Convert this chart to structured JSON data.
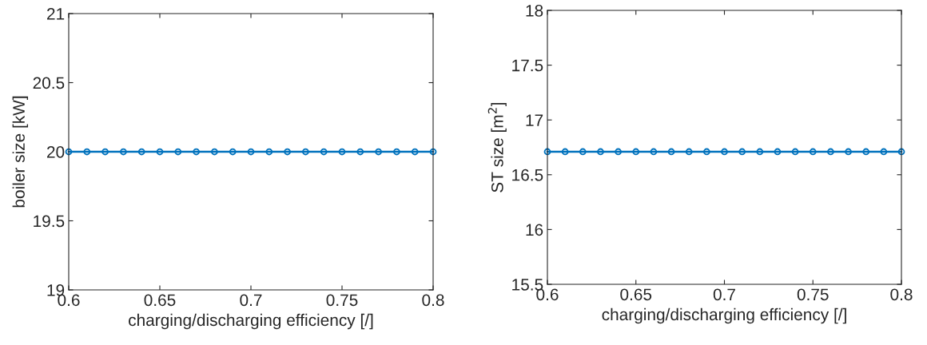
{
  "chart_data": [
    {
      "type": "line",
      "xlabel": "charging/discharging efficiency [/]",
      "ylabel": "boiler size [kW]",
      "x": [
        0.6,
        0.61,
        0.62,
        0.63,
        0.64,
        0.65,
        0.66,
        0.67,
        0.68,
        0.69,
        0.7,
        0.71,
        0.72,
        0.73,
        0.74,
        0.75,
        0.76,
        0.77,
        0.78,
        0.79,
        0.8
      ],
      "series": [
        {
          "color": "#0072bd",
          "values": [
            20,
            20,
            20,
            20,
            20,
            20,
            20,
            20,
            20,
            20,
            20,
            20,
            20,
            20,
            20,
            20,
            20,
            20,
            20,
            20,
            20
          ]
        }
      ],
      "xlim": [
        0.6,
        0.8
      ],
      "xticks": [
        0.6,
        0.65,
        0.7,
        0.75,
        0.8
      ],
      "ylim": [
        19,
        21
      ],
      "yticks": [
        19,
        19.5,
        20,
        20.5,
        21
      ],
      "marker": "circle",
      "line_style": "solid",
      "grid": false,
      "legend": false
    },
    {
      "type": "line",
      "xlabel": "charging/discharging efficiency [/]",
      "ylabel": "ST size [m$^{2}$]",
      "x": [
        0.6,
        0.61,
        0.62,
        0.63,
        0.64,
        0.65,
        0.66,
        0.67,
        0.68,
        0.69,
        0.7,
        0.71,
        0.72,
        0.73,
        0.74,
        0.75,
        0.76,
        0.77,
        0.78,
        0.79,
        0.8
      ],
      "series": [
        {
          "color": "#0072bd",
          "values": [
            16.71,
            16.71,
            16.71,
            16.71,
            16.71,
            16.71,
            16.71,
            16.71,
            16.71,
            16.71,
            16.71,
            16.71,
            16.71,
            16.71,
            16.71,
            16.71,
            16.71,
            16.71,
            16.71,
            16.71,
            16.71
          ]
        }
      ],
      "xlim": [
        0.6,
        0.8
      ],
      "xticks": [
        0.6,
        0.65,
        0.7,
        0.75,
        0.8
      ],
      "ylim": [
        15.5,
        18
      ],
      "yticks": [
        15.5,
        16,
        16.5,
        17,
        17.5,
        18
      ],
      "marker": "circle",
      "line_style": "solid",
      "grid": false,
      "legend": false
    }
  ]
}
